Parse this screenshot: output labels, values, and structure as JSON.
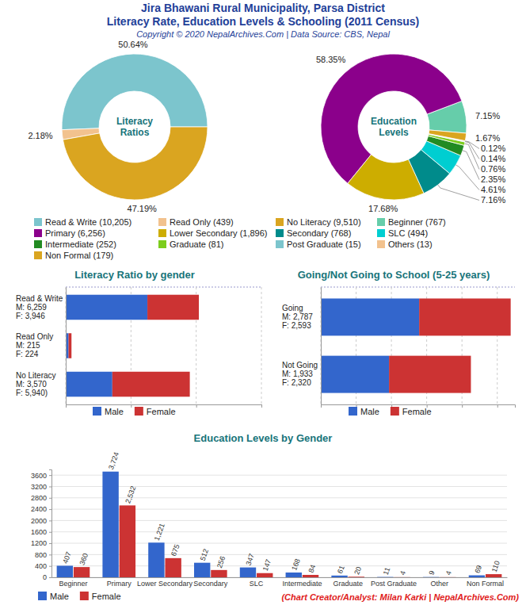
{
  "title": "Jira Bhawani Rural Municipality, Parsa District",
  "subtitle": "Literacy Rate, Education Levels & Schooling (2011 Census)",
  "copyright": "Copyright © 2020 NepalArchives.Com | Data Source: CBS, Nepal",
  "credit": "(Chart Creator/Analyst: Milan Karki | NepalArchives.Com)",
  "chart_data": [
    {
      "type": "pie",
      "title": "Literacy\nRatios",
      "categories": [
        "Read & Write (10,205)",
        "Read Only (439)",
        "No Literacy (9,510)"
      ],
      "values": [
        50.64,
        2.18,
        47.19
      ],
      "value_labels": [
        "50.64%",
        "2.18%",
        "47.19%"
      ],
      "colors": [
        "#7cc5cd",
        "#f2c28e",
        "#daa520"
      ],
      "legend": "bottom"
    },
    {
      "type": "pie",
      "title": "Education\nLevels",
      "categories": [
        "Beginner (767)",
        "Primary (6,256)",
        "Lower Secondary (1,896)",
        "Secondary (768)",
        "SLC (494)",
        "Intermediate (252)",
        "Graduate (81)",
        "Post Graduate (15)",
        "Others (13)",
        "Non Formal (179)"
      ],
      "values": [
        7.15,
        58.35,
        17.68,
        7.16,
        4.61,
        2.35,
        0.76,
        0.14,
        0.12,
        1.67
      ],
      "value_labels": [
        "7.15%",
        "58.35%",
        "17.68%",
        "7.16%",
        "4.61%",
        "2.35%",
        "0.76%",
        "0.14%",
        "0.12%",
        "1.67%"
      ],
      "colors": [
        "#66cdaa",
        "#8b008b",
        "#cdad00",
        "#008b8b",
        "#00ced1",
        "#228b22",
        "#7ccd1c",
        "#7cc5cd",
        "#f2c28e",
        "#daa520"
      ],
      "legend": "bottom"
    },
    {
      "type": "bar",
      "orientation": "horizontal",
      "stacked": true,
      "title": "Literacy Ratio by gender",
      "categories": [
        "Read & Write\nM: 6,259\nF: 3,946",
        "Read Only\nM: 215\nF: 224",
        "No Literacy\nM: 3,570\nF: 5,940)"
      ],
      "series": [
        {
          "name": "Male",
          "color": "#3366cc",
          "values": [
            6259,
            215,
            3570
          ]
        },
        {
          "name": "Female",
          "color": "#cc3333",
          "values": [
            3946,
            224,
            5940
          ]
        }
      ],
      "xlim": [
        0,
        15000
      ],
      "xticks": [
        0,
        5000,
        10000,
        15000
      ],
      "grid": true,
      "tick_labels": "y",
      "legend": "bottom"
    },
    {
      "type": "bar",
      "orientation": "horizontal",
      "stacked": true,
      "title": "Going/Not Going to School (5-25 years)",
      "categories": [
        "Going\nM: 2,787\nF: 2,593",
        "Not Going\nM: 1,933\nF: 2,320"
      ],
      "series": [
        {
          "name": "Male",
          "color": "#3366cc",
          "values": [
            2787,
            1933
          ]
        },
        {
          "name": "Female",
          "color": "#cc3333",
          "values": [
            2593,
            2320
          ]
        }
      ],
      "xlim": [
        0,
        5500
      ],
      "xticks": [
        0,
        1000,
        2000,
        3000,
        4000,
        5000
      ],
      "grid": true,
      "tick_labels": "y",
      "legend": "bottom"
    },
    {
      "type": "bar",
      "title": "Education Levels by Gender",
      "categories": [
        "Beginner",
        "Primary",
        "Lower Secondary",
        "Secondary",
        "SLC",
        "Intermediate",
        "Graduate",
        "Post Graduate",
        "Other",
        "Non Formal"
      ],
      "series": [
        {
          "name": "Male",
          "color": "#3366cc",
          "values": [
            407,
            3724,
            1221,
            512,
            347,
            168,
            61,
            11,
            9,
            69
          ],
          "value_labels": [
            "407",
            "3,724",
            "1,221",
            "512",
            "347",
            "168",
            "61",
            "11",
            "9",
            "69"
          ]
        },
        {
          "name": "Female",
          "color": "#cc3333",
          "values": [
            360,
            2532,
            675,
            256,
            147,
            84,
            20,
            4,
            4,
            110
          ],
          "value_labels": [
            "360",
            "2,532",
            "675",
            "256",
            "147",
            "84",
            "20",
            "4",
            "4",
            "110"
          ]
        }
      ],
      "ylim": [
        0,
        3800
      ],
      "yticks": [
        0,
        400,
        800,
        1200,
        1600,
        2000,
        2400,
        2800,
        3200,
        3600
      ],
      "grid": true,
      "data_labels": true,
      "legend": "bottom"
    }
  ]
}
